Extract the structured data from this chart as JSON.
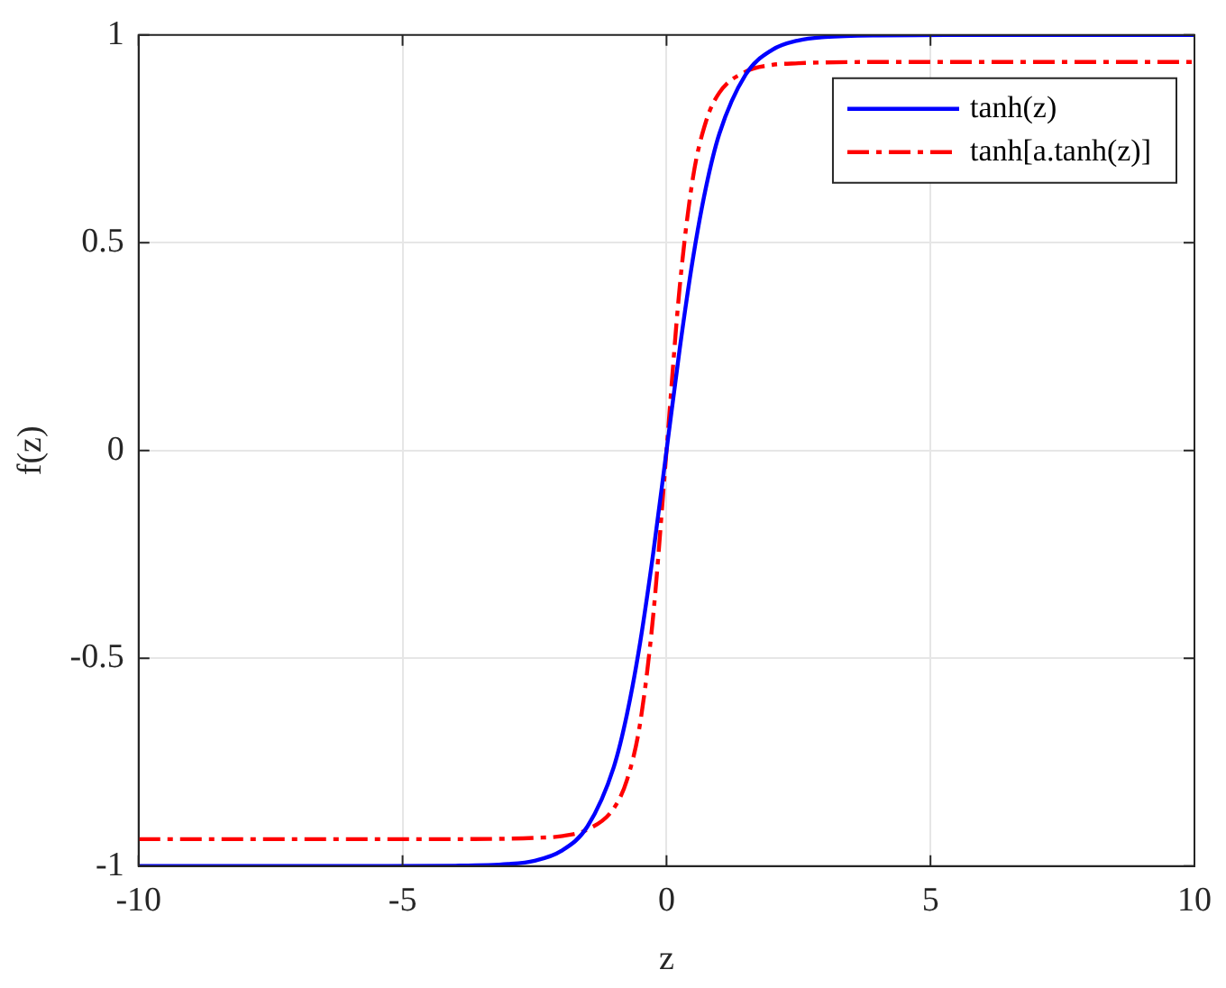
{
  "chart_data": {
    "type": "line",
    "xlabel": "z",
    "ylabel": "f(z)",
    "xlim": [
      -10,
      10
    ],
    "ylim": [
      -1,
      1
    ],
    "xticks": [
      -10,
      -5,
      0,
      5,
      10
    ],
    "yticks": [
      -1,
      -0.5,
      0,
      0.5,
      1
    ],
    "grid": true,
    "legend": "top right",
    "marker": "none",
    "series": [
      {
        "name": "tanh(z)",
        "color": "#0000ff",
        "line_style": "solid",
        "x": [
          -10,
          -6,
          -4,
          -3,
          -2.5,
          -2,
          -1.5,
          -1,
          -0.75,
          -0.5,
          -0.25,
          0,
          0.25,
          0.5,
          0.75,
          1,
          1.5,
          2,
          2.5,
          3,
          4,
          6,
          10
        ],
        "values": [
          -1,
          -1,
          -0.999,
          -0.995,
          -0.987,
          -0.964,
          -0.905,
          -0.762,
          -0.635,
          -0.462,
          -0.245,
          0,
          0.245,
          0.462,
          0.635,
          0.762,
          0.905,
          0.964,
          0.987,
          0.995,
          0.999,
          1,
          1
        ]
      },
      {
        "name": "tanh[a.tanh(z)]",
        "color": "#ff0000",
        "line_style": "dashed",
        "x": [
          -10,
          -6,
          -4,
          -3,
          -2.5,
          -2,
          -1.5,
          -1,
          -0.75,
          -0.5,
          -0.25,
          0,
          0.25,
          0.5,
          0.75,
          1,
          1.5,
          2,
          2.5,
          3,
          4,
          6,
          10
        ],
        "values": [
          -0.935,
          -0.935,
          -0.935,
          -0.934,
          -0.932,
          -0.928,
          -0.912,
          -0.861,
          -0.793,
          -0.656,
          -0.394,
          0,
          0.394,
          0.656,
          0.793,
          0.861,
          0.912,
          0.928,
          0.932,
          0.934,
          0.935,
          0.935,
          0.935
        ]
      }
    ]
  }
}
